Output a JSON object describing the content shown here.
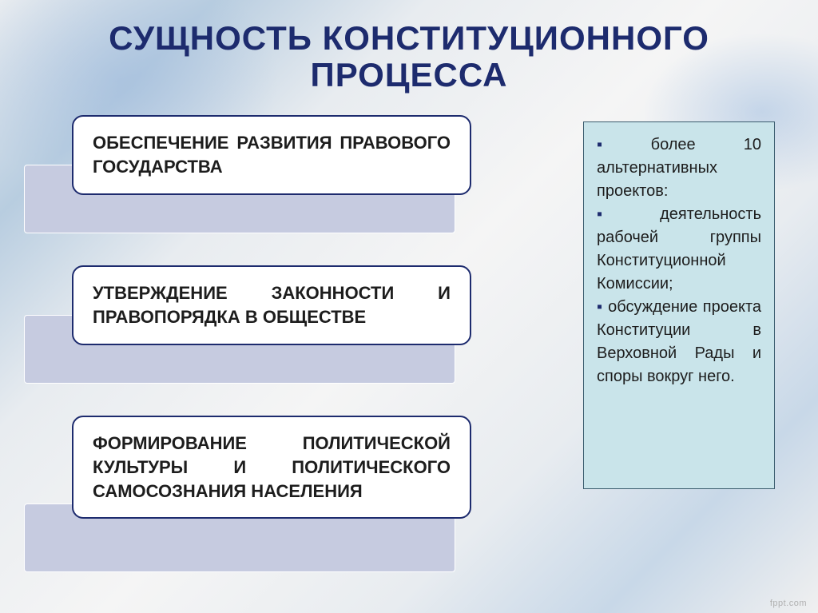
{
  "title": {
    "text": "СУЩНОСТЬ КОНСТИТУЦИОННОГО ПРОЦЕССА",
    "color": "#1d2b6e",
    "font_size": 42
  },
  "blocks": [
    {
      "text": "ОБЕСПЕЧЕНИЕ РАЗВИТИЯ ПРАВОВОГО ГОСУДАРСТВА"
    },
    {
      "text": "УТВЕРЖДЕНИЕ ЗАКОННОСТИ И ПРАВОПОРЯДКА В ОБЩЕСТВЕ"
    },
    {
      "text": "ФОРМИРОВАНИЕ ПОЛИТИЧЕСКОЙ КУЛЬТУРЫ И ПОЛИТИЧЕСКОГО САМОСОЗНАНИЯ НАСЕЛЕНИЯ"
    }
  ],
  "block_style": {
    "card_background": "#ffffff",
    "card_border_color": "#1d2b6e",
    "card_text_color": "#1d1d1d",
    "card_font_size": 22,
    "grey_box_color": "#c6cbe0"
  },
  "side_panel": {
    "items": [
      "более 10 альтернативных проектов:",
      "деятельность рабочей группы Конституционной Комиссии;",
      "обсуждение проекта Конституции в Верховной Рады и споры вокруг него."
    ],
    "background": "#c9e4ea",
    "border_color": "#3a5c6e",
    "text_color": "#1d1d1d",
    "bullet_color": "#1d2b6e",
    "font_size": 20
  },
  "footer": "fppt.com"
}
